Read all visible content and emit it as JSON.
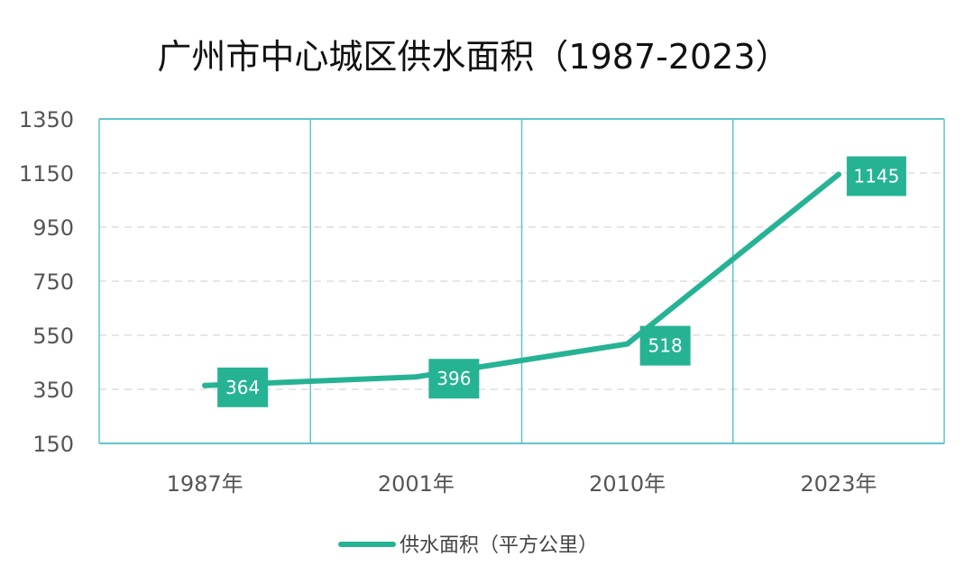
{
  "chart_data": {
    "type": "line",
    "title": "广州市中心城区供水面积（1987-2023）",
    "categories": [
      "1987年",
      "2001年",
      "2010年",
      "2023年"
    ],
    "series": [
      {
        "name": "供水面积（平方公里）",
        "values": [
          364,
          396,
          518,
          1145
        ],
        "color": "#26b394"
      }
    ],
    "data_labels": [
      "364",
      "396",
      "518",
      "1145"
    ],
    "yticks": [
      "150",
      "350",
      "550",
      "750",
      "950",
      "1150",
      "1350"
    ],
    "ylim": [
      150,
      1350
    ],
    "grid": "vertical solid category dividers, horizontal dashed",
    "legend": "bottom-center",
    "colors": {
      "line": "#26b394",
      "label_box": "#26b394",
      "frame": "#5fc4cf",
      "grid": "#dddddd"
    }
  }
}
